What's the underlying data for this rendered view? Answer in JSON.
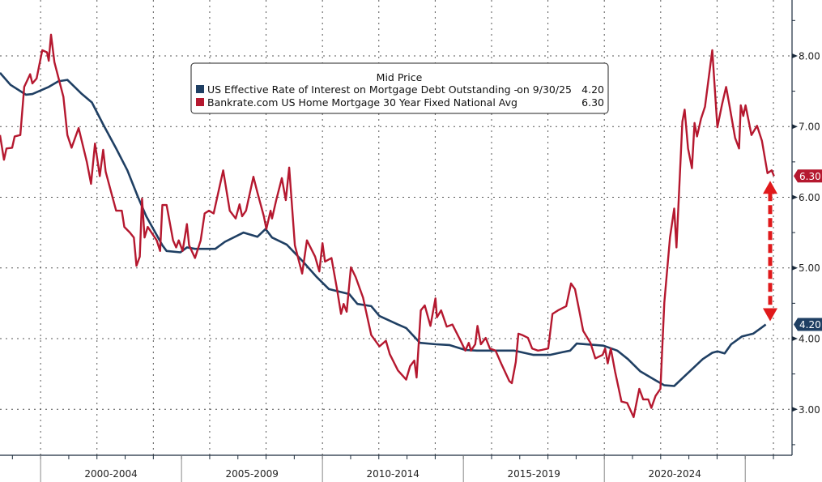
{
  "chart_data": {
    "type": "line",
    "title": "",
    "xlabel": "",
    "ylabel": "",
    "legend_placement": "top-center",
    "legend": {
      "header": "Mid Price",
      "entries": [
        {
          "label": "US Effective Rate of Interest on Mortgage Debt Outstanding -",
          "date_label": "on 9/30/25",
          "value": "4.20"
        },
        {
          "label": "Bankrate.com US Home Mortgage 30 Year Fixed National Avg",
          "date_label": "",
          "value": "6.30"
        }
      ]
    },
    "xlim": [
      1998.56,
      2026.66
    ],
    "ylim": [
      2.35,
      8.79
    ],
    "yticks": [
      3,
      4,
      5,
      6,
      7,
      8
    ],
    "ytick_labels": [
      "3.00",
      "4.00",
      "5.00",
      "6.00",
      "7.00",
      "8.00"
    ],
    "x_period_labels": [
      {
        "label": "2000-2004",
        "start": 2000,
        "end": 2005
      },
      {
        "label": "2005-2009",
        "start": 2005,
        "end": 2010
      },
      {
        "label": "2010-2014",
        "start": 2010,
        "end": 2015
      },
      {
        "label": "2015-2019",
        "start": 2015,
        "end": 2020
      },
      {
        "label": "2020-2024",
        "start": 2020,
        "end": 2025
      }
    ],
    "grid": true,
    "annotation": {
      "type": "double-arrow",
      "from": 4.2,
      "to": 6.3,
      "color": "#e0191b"
    },
    "series": [
      {
        "name": "US Effective Rate of Interest on Mortgage Debt Outstanding",
        "color": "#1f3f63",
        "last_value": "4.20",
        "x": [
          1998.56,
          1998.93,
          1999.48,
          1999.71,
          2000.29,
          2000.63,
          2000.95,
          2001.44,
          2001.82,
          2002.22,
          2002.68,
          2003.08,
          2003.46,
          2003.75,
          2004.32,
          2004.47,
          2004.96,
          2005.19,
          2005.48,
          2006.2,
          2006.54,
          2007.2,
          2007.69,
          2007.98,
          2008.21,
          2008.73,
          2009.31,
          2009.8,
          2010.23,
          2010.95,
          2011.24,
          2011.73,
          2012.02,
          2012.68,
          2012.97,
          2013.46,
          2014.03,
          2014.5,
          2015.07,
          2015.48,
          2016.23,
          2016.8,
          2017.49,
          2018.07,
          2018.53,
          2018.79,
          2019.02,
          2019.97,
          2020.46,
          2020.84,
          2021.27,
          2021.82,
          2022.13,
          2022.48,
          2022.77,
          2023.49,
          2023.83,
          2024.01,
          2024.27,
          2024.5,
          2024.88,
          2025.28,
          2025.56,
          2025.73
        ],
        "y": [
          7.76,
          7.59,
          7.45,
          7.46,
          7.56,
          7.64,
          7.66,
          7.47,
          7.34,
          7.03,
          6.69,
          6.38,
          6.0,
          5.73,
          5.32,
          5.24,
          5.22,
          5.29,
          5.27,
          5.27,
          5.37,
          5.5,
          5.44,
          5.55,
          5.43,
          5.33,
          5.09,
          4.87,
          4.7,
          4.63,
          4.49,
          4.46,
          4.32,
          4.2,
          4.15,
          3.94,
          3.92,
          3.91,
          3.84,
          3.83,
          3.83,
          3.83,
          3.77,
          3.77,
          3.81,
          3.83,
          3.93,
          3.9,
          3.83,
          3.71,
          3.54,
          3.41,
          3.34,
          3.33,
          3.44,
          3.71,
          3.8,
          3.82,
          3.79,
          3.92,
          4.03,
          4.07,
          4.15,
          4.2
        ]
      },
      {
        "name": "Bankrate.com US Home Mortgage 30 Year Fixed National Avg",
        "color": "#b5182f",
        "last_value": "6.30",
        "x": [
          1998.56,
          1998.7,
          1998.79,
          1998.99,
          1999.08,
          1999.28,
          1999.42,
          1999.63,
          1999.71,
          1999.86,
          2000.06,
          2000.23,
          2000.29,
          2000.37,
          2000.49,
          2000.81,
          2000.95,
          2001.1,
          2001.35,
          2001.64,
          2001.79,
          2001.93,
          2002.1,
          2002.22,
          2002.31,
          2002.68,
          2002.88,
          2002.97,
          2003.17,
          2003.31,
          2003.4,
          2003.52,
          2003.6,
          2003.69,
          2003.8,
          2004.12,
          2004.24,
          2004.32,
          2004.47,
          2004.7,
          2004.81,
          2004.9,
          2005.04,
          2005.19,
          2005.27,
          2005.48,
          2005.68,
          2005.82,
          2005.97,
          2006.14,
          2006.48,
          2006.71,
          2006.92,
          2007.06,
          2007.15,
          2007.29,
          2007.55,
          2007.69,
          2007.92,
          2008.01,
          2008.16,
          2008.21,
          2008.36,
          2008.56,
          2008.7,
          2008.82,
          2009.02,
          2009.28,
          2009.45,
          2009.74,
          2009.89,
          2010.0,
          2010.09,
          2010.32,
          2010.52,
          2010.66,
          2010.75,
          2010.86,
          2011.01,
          2011.18,
          2011.44,
          2011.73,
          2012.02,
          2012.25,
          2012.39,
          2012.68,
          2012.97,
          2013.11,
          2013.26,
          2013.34,
          2013.49,
          2013.63,
          2013.83,
          2014.01,
          2014.06,
          2014.21,
          2014.41,
          2014.61,
          2014.9,
          2015.07,
          2015.19,
          2015.27,
          2015.42,
          2015.5,
          2015.62,
          2015.79,
          2015.94,
          2016.14,
          2016.34,
          2016.63,
          2016.72,
          2016.86,
          2016.95,
          2017.09,
          2017.29,
          2017.44,
          2017.64,
          2017.78,
          2018.01,
          2018.16,
          2018.36,
          2018.65,
          2018.82,
          2018.96,
          2019.11,
          2019.25,
          2019.51,
          2019.68,
          2019.94,
          2020.03,
          2020.12,
          2020.23,
          2020.38,
          2020.61,
          2020.81,
          2021.04,
          2021.24,
          2021.38,
          2021.56,
          2021.67,
          2021.82,
          2021.99,
          2022.13,
          2022.33,
          2022.48,
          2022.56,
          2022.77,
          2022.85,
          2022.97,
          2023.11,
          2023.2,
          2023.29,
          2023.43,
          2023.57,
          2023.83,
          2024.01,
          2024.18,
          2024.32,
          2024.44,
          2024.64,
          2024.78,
          2024.84,
          2024.93,
          2025.01,
          2025.22,
          2025.42,
          2025.59,
          2025.79,
          2025.94,
          2026.02
        ],
        "y": [
          6.88,
          6.53,
          6.69,
          6.7,
          6.86,
          6.88,
          7.56,
          7.74,
          7.61,
          7.68,
          8.08,
          8.05,
          7.93,
          8.3,
          7.91,
          7.42,
          6.88,
          6.7,
          6.98,
          6.5,
          6.19,
          6.76,
          6.3,
          6.67,
          6.36,
          5.81,
          5.81,
          5.58,
          5.5,
          5.43,
          5.03,
          5.16,
          5.98,
          5.43,
          5.58,
          5.39,
          5.24,
          5.89,
          5.89,
          5.39,
          5.29,
          5.39,
          5.24,
          5.62,
          5.32,
          5.14,
          5.39,
          5.77,
          5.81,
          5.77,
          6.38,
          5.81,
          5.7,
          5.9,
          5.73,
          5.81,
          6.29,
          6.07,
          5.73,
          5.55,
          5.81,
          5.7,
          5.96,
          6.27,
          5.96,
          6.42,
          5.32,
          4.92,
          5.39,
          5.16,
          4.95,
          5.35,
          5.09,
          5.14,
          4.69,
          4.35,
          4.49,
          4.38,
          5.01,
          4.87,
          4.58,
          4.05,
          3.89,
          3.97,
          3.78,
          3.55,
          3.42,
          3.61,
          3.69,
          3.45,
          4.4,
          4.47,
          4.18,
          4.57,
          4.3,
          4.4,
          4.17,
          4.2,
          3.97,
          3.83,
          3.94,
          3.83,
          3.92,
          4.18,
          3.92,
          4.01,
          3.86,
          3.83,
          3.65,
          3.4,
          3.37,
          3.67,
          4.07,
          4.05,
          4.01,
          3.86,
          3.83,
          3.84,
          3.86,
          4.35,
          4.4,
          4.46,
          4.78,
          4.7,
          4.4,
          4.11,
          3.94,
          3.72,
          3.77,
          3.86,
          3.65,
          3.86,
          3.54,
          3.11,
          3.09,
          2.89,
          3.29,
          3.14,
          3.14,
          3.02,
          3.19,
          3.29,
          4.51,
          5.43,
          5.84,
          5.29,
          7.07,
          7.24,
          6.69,
          6.41,
          7.05,
          6.86,
          7.11,
          7.28,
          8.08,
          6.99,
          7.32,
          7.56,
          7.3,
          6.84,
          6.69,
          7.3,
          7.15,
          7.3,
          6.88,
          7.01,
          6.8,
          6.34,
          6.38,
          6.3
        ]
      }
    ]
  }
}
